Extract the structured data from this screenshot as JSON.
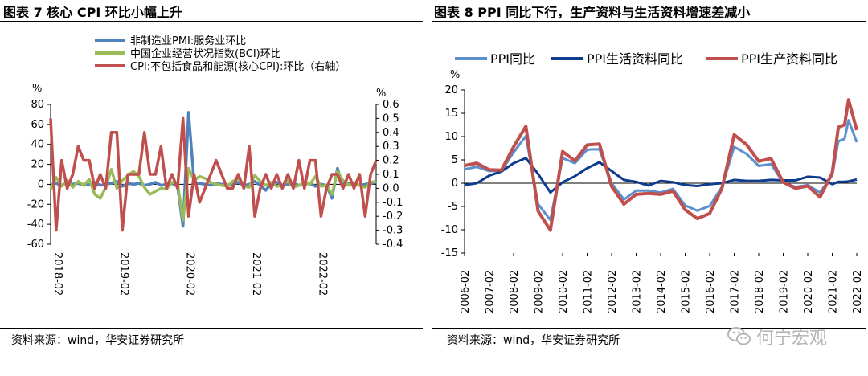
{
  "left_panel": {
    "title": "图表 7  核心 CPI 环比小幅上升",
    "source": "资料来源：wind，华安证券研究所"
  },
  "right_panel": {
    "title": "图表 8 PPI 同比下行，生产资料与生活资料增速差减小",
    "source": "资料来源：wind，华安证券研究所"
  },
  "watermark": {
    "text": "何宁宏观",
    "icon": "wechat-icon"
  },
  "chart_data": [
    {
      "type": "line",
      "title": "核心 CPI 环比小幅上升",
      "ylabel_left": "%",
      "ylabel_right": "%",
      "ylim_left": [
        -60,
        80
      ],
      "ylim_right": [
        -0.4,
        0.6
      ],
      "yticks_left": [
        "80",
        "60",
        "40",
        "20",
        "0",
        "-20",
        "-40",
        "-60"
      ],
      "yticks_right": [
        "0.6",
        "0.5",
        "0.4",
        "0.3",
        "0.2",
        "0.1",
        "0.0",
        "-0.1",
        "-0.2",
        "-0.3",
        "-0.4"
      ],
      "x_tick_labels": [
        "2018-02",
        "2019-02",
        "2020-02",
        "2021-02",
        "2022-02"
      ],
      "x_start": "2018-02",
      "series": [
        {
          "name": "非制造业PMI:服务业环比",
          "axis": "left",
          "color": "#4f81bd",
          "values": [
            0,
            1,
            -1,
            2,
            0,
            1,
            -1,
            0,
            2,
            -1,
            0,
            1,
            3,
            -2,
            1,
            0,
            1,
            -1,
            0,
            2,
            -1,
            0,
            1,
            -2,
            -42,
            72,
            2,
            1,
            0,
            -1,
            1,
            0,
            -1,
            0,
            2,
            -1,
            0,
            3,
            -1,
            -6,
            1,
            2,
            -1,
            0,
            1,
            -1,
            0,
            1,
            -2,
            0,
            -1,
            -14,
            16,
            -2,
            1,
            0,
            -1,
            0,
            1,
            2
          ]
        },
        {
          "name": "中国企业经营状况指数(BCI)环比",
          "axis": "left",
          "color": "#9bbb59",
          "values": [
            -5,
            7,
            -2,
            4,
            -3,
            3,
            -1,
            5,
            -10,
            -14,
            -3,
            15,
            -4,
            4,
            9,
            13,
            8,
            -3,
            -10,
            -7,
            -4,
            -5,
            2,
            1,
            -36,
            16,
            4,
            8,
            6,
            2,
            0,
            -1,
            -2,
            3,
            6,
            -2,
            -3,
            9,
            3,
            -1,
            2,
            -2,
            -1,
            4,
            -3,
            -1,
            2,
            0,
            8,
            -2,
            -1,
            -10,
            13,
            4,
            -1,
            2,
            -1,
            -3,
            2,
            3
          ]
        },
        {
          "name": "CPI:不包括食品和能源(核心CPI):环比（右轴）",
          "axis": "right",
          "color": "#c0504d",
          "values": [
            0.5,
            -0.3,
            0.2,
            0.0,
            0.1,
            0.3,
            0.2,
            0.2,
            0.0,
            0.1,
            0.0,
            0.4,
            0.4,
            -0.3,
            0.1,
            0.1,
            0.1,
            0.4,
            0.1,
            0.1,
            0.3,
            0.0,
            0.1,
            0.0,
            0.5,
            -0.2,
            0.1,
            -0.1,
            0.0,
            0.1,
            0.2,
            0.1,
            0.0,
            0.0,
            0.1,
            0.0,
            0.3,
            -0.2,
            0.0,
            0.1,
            0.0,
            0.1,
            0.0,
            0.1,
            0.0,
            0.2,
            0.0,
            0.2,
            0.2,
            -0.2,
            0.0,
            0.1,
            0.1,
            0.0,
            0.1,
            0.0,
            0.1,
            -0.2,
            0.1,
            0.2
          ]
        }
      ]
    },
    {
      "type": "line",
      "title": "PPI 同比下行，生产资料与生活资料增速差减小",
      "ylabel": "%",
      "ylim": [
        -15,
        20
      ],
      "yticks": [
        "20",
        "15",
        "10",
        "5",
        "0",
        "-5",
        "-10",
        "-15"
      ],
      "x_tick_labels": [
        "2006-02",
        "2007-02",
        "2008-02",
        "2009-02",
        "2010-02",
        "2011-02",
        "2012-02",
        "2013-02",
        "2014-02",
        "2015-02",
        "2016-02",
        "2017-02",
        "2018-02",
        "2019-02",
        "2020-02",
        "2021-02",
        "2022-02"
      ],
      "x": [
        "2006-02",
        "2006-08",
        "2007-02",
        "2007-08",
        "2008-02",
        "2008-08",
        "2009-02",
        "2009-08",
        "2010-02",
        "2010-08",
        "2011-02",
        "2011-08",
        "2012-02",
        "2012-08",
        "2013-02",
        "2013-08",
        "2014-02",
        "2014-08",
        "2015-02",
        "2015-08",
        "2016-02",
        "2016-08",
        "2017-02",
        "2017-08",
        "2018-02",
        "2018-08",
        "2019-02",
        "2019-08",
        "2020-02",
        "2020-08",
        "2021-02",
        "2021-05",
        "2021-08",
        "2021-10",
        "2022-02"
      ],
      "series": [
        {
          "name": "PPI同比",
          "color": "#5b8fd0",
          "width": 3,
          "values": [
            3.0,
            3.5,
            2.6,
            2.6,
            6.6,
            10.1,
            -4.5,
            -7.9,
            5.4,
            4.3,
            7.2,
            7.3,
            0.0,
            -3.5,
            -1.6,
            -1.6,
            -2.0,
            -1.2,
            -4.8,
            -5.9,
            -4.9,
            -0.8,
            7.8,
            6.3,
            3.7,
            4.1,
            0.1,
            -0.8,
            -0.4,
            -2.0,
            1.7,
            9.0,
            9.5,
            13.5,
            8.8
          ]
        },
        {
          "name": "PPI生活资料同比",
          "color": "#0d3d8c",
          "width": 3,
          "values": [
            -0.4,
            0.0,
            1.6,
            2.5,
            4.3,
            5.4,
            2.0,
            -2.0,
            0.2,
            1.5,
            3.2,
            4.5,
            2.6,
            0.7,
            0.3,
            -0.5,
            0.5,
            0.2,
            -0.4,
            -0.6,
            -0.2,
            0.0,
            0.7,
            0.5,
            0.5,
            0.7,
            0.6,
            0.6,
            1.4,
            1.2,
            -0.2,
            0.3,
            0.3,
            0.4,
            0.8
          ]
        },
        {
          "name": "PPI生产资料同比",
          "color": "#c0504d",
          "width": 4,
          "values": [
            3.8,
            4.3,
            2.9,
            2.8,
            7.8,
            12.2,
            -6.0,
            -10.1,
            6.8,
            4.8,
            8.2,
            8.4,
            -0.7,
            -4.5,
            -2.4,
            -2.2,
            -2.4,
            -1.7,
            -5.7,
            -7.6,
            -6.5,
            -1.1,
            10.4,
            8.3,
            4.7,
            5.3,
            0.2,
            -1.1,
            -0.6,
            -3.0,
            2.2,
            12.0,
            12.5,
            17.9,
            11.4
          ]
        }
      ]
    }
  ]
}
